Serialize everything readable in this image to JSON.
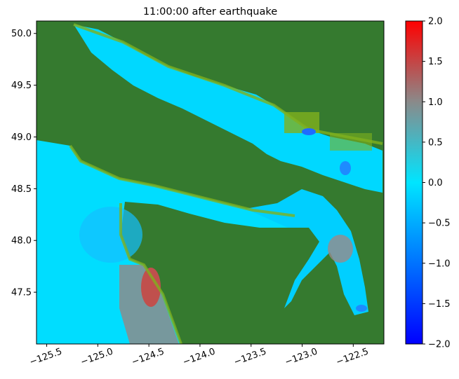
{
  "chart_data": {
    "type": "heatmap",
    "title": "11:00:00 after earthquake",
    "xlabel": "",
    "ylabel": "",
    "xlim": [
      -125.6,
      -122.2
    ],
    "ylim": [
      47.0,
      50.12
    ],
    "x_ticks": [
      -125.5,
      -125.0,
      -124.5,
      -124.0,
      -123.5,
      -123.0,
      -122.5
    ],
    "x_tick_labels": [
      "−125.5",
      "−125.0",
      "−124.5",
      "−124.0",
      "−123.5",
      "−123.0",
      "−122.5"
    ],
    "y_ticks": [
      47.5,
      48.0,
      48.5,
      49.0,
      49.5,
      50.0
    ],
    "y_tick_labels": [
      "47.5",
      "48.0",
      "48.5",
      "49.0",
      "49.5",
      "50.0"
    ],
    "colorbar": {
      "range": [
        -2.0,
        2.0
      ],
      "ticks": [
        -2.0,
        -1.5,
        -1.0,
        -0.5,
        0.0,
        0.5,
        1.0,
        1.5,
        2.0
      ],
      "tick_labels": [
        "−2.0",
        "−1.5",
        "−1.0",
        "−0.5",
        "0.0",
        "0.5",
        "1.0",
        "1.5",
        "2.0"
      ],
      "colors": [
        "#0000ff",
        "#00e5ff",
        "#8a8a8a",
        "#ff0000"
      ]
    },
    "colors": {
      "land": "#357a2f",
      "shore": "#7fb01e",
      "water": "#00e5ff",
      "positive_anomaly": "#c0504d"
    },
    "grid": false
  }
}
